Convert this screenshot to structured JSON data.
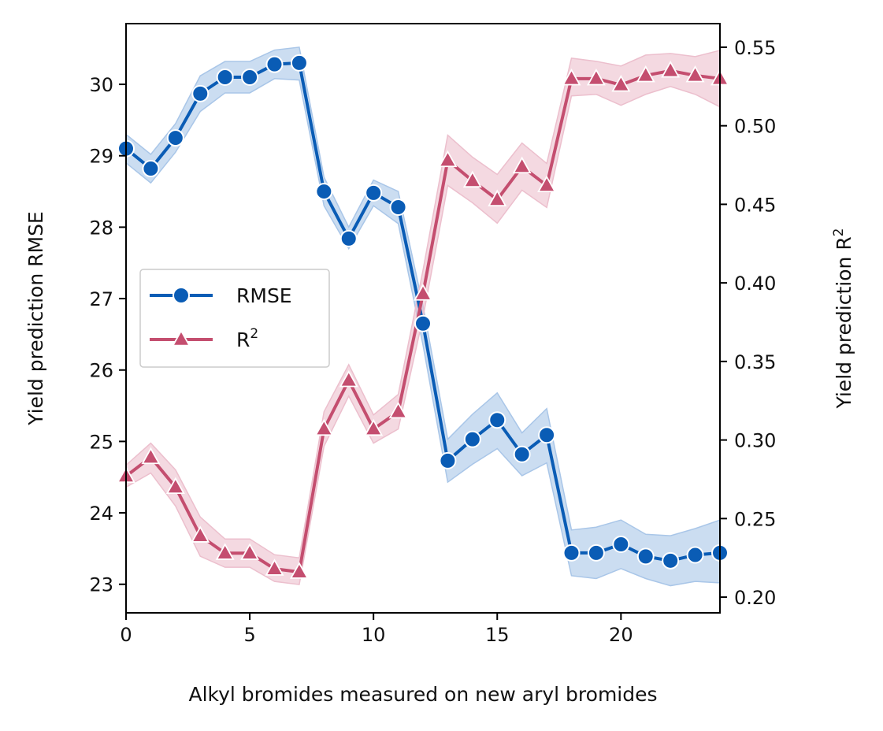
{
  "chart_data": {
    "type": "line",
    "xlabel": "Alkyl bromides measured on new aryl bromides",
    "ylabel_left": "Yield prediction RMSE",
    "ylabel_right": "Yield prediction R",
    "ylabel_right_sup": "2",
    "xlim": [
      0,
      24
    ],
    "ylim_left": [
      22.6,
      30.85
    ],
    "ylim_right": [
      0.19,
      0.565
    ],
    "xticks": [
      0,
      5,
      10,
      15,
      20
    ],
    "yticks_left": [
      23,
      24,
      25,
      26,
      27,
      28,
      29,
      30
    ],
    "yticks_right": [
      0.2,
      0.25,
      0.3,
      0.35,
      0.4,
      0.45,
      0.5,
      0.55
    ],
    "grid": false,
    "legend_position": "center-left",
    "series": [
      {
        "name": "RMSE",
        "name_sup": "",
        "axis": "left",
        "color": "#0a5cb5",
        "band_color": "#a9c6e8",
        "marker": "circle",
        "x": [
          0,
          1,
          2,
          3,
          4,
          5,
          6,
          7,
          8,
          9,
          10,
          11,
          12,
          13,
          14,
          15,
          16,
          17,
          18,
          19,
          20,
          21,
          22,
          23,
          24
        ],
        "y": [
          29.1,
          28.82,
          29.25,
          29.87,
          30.1,
          30.1,
          30.28,
          30.3,
          28.5,
          27.84,
          28.48,
          28.28,
          26.65,
          24.73,
          25.03,
          25.3,
          24.82,
          25.09,
          23.44,
          23.44,
          23.56,
          23.39,
          23.33,
          23.41,
          23.44
        ],
        "lower": [
          28.9,
          28.62,
          29.05,
          29.62,
          29.88,
          29.88,
          30.08,
          30.06,
          28.3,
          27.7,
          28.3,
          28.05,
          26.35,
          24.43,
          24.68,
          24.9,
          24.52,
          24.7,
          23.12,
          23.08,
          23.22,
          23.08,
          22.98,
          23.04,
          23.02
        ],
        "upper": [
          29.3,
          29.02,
          29.45,
          30.12,
          30.32,
          30.32,
          30.48,
          30.52,
          28.7,
          28.0,
          28.66,
          28.5,
          26.9,
          25.03,
          25.38,
          25.68,
          25.12,
          25.46,
          23.76,
          23.8,
          23.9,
          23.7,
          23.68,
          23.78,
          23.9
        ]
      },
      {
        "name": "R",
        "name_sup": "2",
        "axis": "right",
        "color": "#c44e6f",
        "band_color": "#ecbfcd",
        "marker": "triangle",
        "x": [
          0,
          1,
          2,
          3,
          4,
          5,
          6,
          7,
          8,
          9,
          10,
          11,
          12,
          13,
          14,
          15,
          16,
          17,
          18,
          19,
          20,
          21,
          22,
          23,
          24
        ],
        "y": [
          0.277,
          0.289,
          0.27,
          0.239,
          0.228,
          0.228,
          0.218,
          0.216,
          0.307,
          0.338,
          0.307,
          0.318,
          0.393,
          0.478,
          0.465,
          0.453,
          0.474,
          0.462,
          0.53,
          0.53,
          0.526,
          0.532,
          0.535,
          0.532,
          0.53
        ],
        "lower": [
          0.27,
          0.279,
          0.258,
          0.226,
          0.219,
          0.219,
          0.21,
          0.208,
          0.296,
          0.328,
          0.298,
          0.307,
          0.378,
          0.462,
          0.451,
          0.438,
          0.459,
          0.448,
          0.519,
          0.52,
          0.513,
          0.52,
          0.525,
          0.52,
          0.512
        ],
        "upper": [
          0.284,
          0.298,
          0.281,
          0.251,
          0.237,
          0.237,
          0.227,
          0.225,
          0.318,
          0.348,
          0.316,
          0.329,
          0.408,
          0.494,
          0.48,
          0.469,
          0.489,
          0.476,
          0.543,
          0.541,
          0.538,
          0.545,
          0.546,
          0.544,
          0.548
        ]
      }
    ]
  }
}
